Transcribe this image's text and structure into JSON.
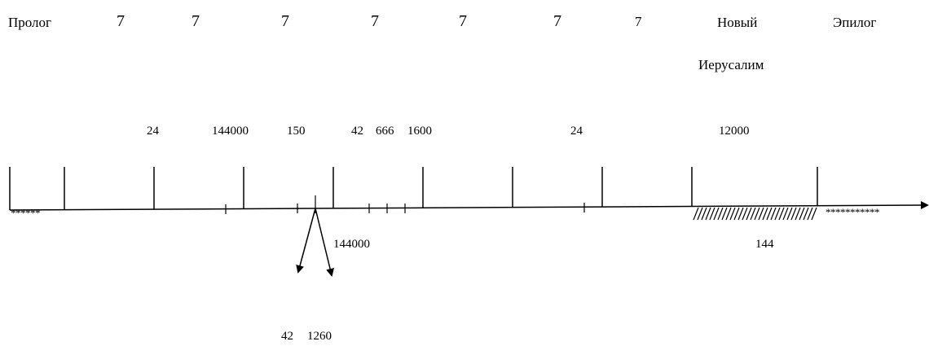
{
  "header": {
    "prologue": "Пролог",
    "sevens": [
      "7",
      "7",
      "7",
      "7",
      "7",
      "7",
      "7"
    ],
    "new_jerusalem_line1": "Новый",
    "new_jerusalem_line2": "Иерусалим",
    "epilogue": "Эпилог"
  },
  "numbers_above": {
    "n1": "24",
    "n2": "144000",
    "n3": "150",
    "n4": "42",
    "n5": "666",
    "n6": "1600",
    "n7": "24",
    "n8": "12000"
  },
  "numbers_below": {
    "branch": "144000",
    "under_hatch": "144",
    "bottom_left": "42",
    "bottom_right": "1260"
  },
  "marks": {
    "prologue_stars": "******",
    "epilogue_stars": "***********"
  }
}
